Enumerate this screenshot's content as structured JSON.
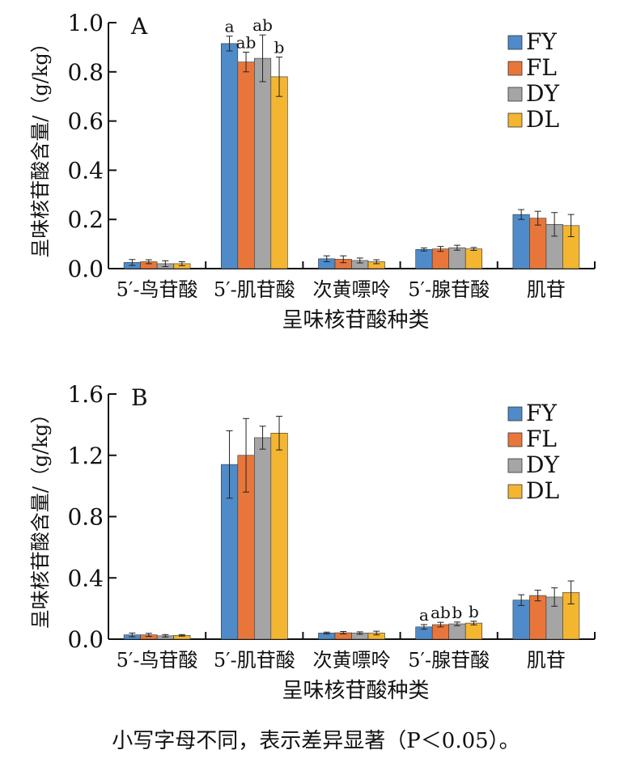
{
  "colors": {
    "FY": "#4f8bc9",
    "FL": "#e8763b",
    "DY": "#a5a5a5",
    "DL": "#f4b531",
    "axis": "#111111"
  },
  "chart_data": [
    {
      "type": "bar",
      "panel_label": "A",
      "categories": [
        "5′-鸟苷酸",
        "5′-肌苷酸",
        "次黄嘌呤",
        "5′-腺苷酸",
        "肌苷"
      ],
      "ylabel": "呈味核苷酸含量/（g/kg）",
      "xlabel": "呈味核苷酸种类",
      "ylim": [
        0,
        1.0
      ],
      "yticks": [
        "0.0",
        "0.2",
        "0.4",
        "0.6",
        "0.8",
        "1.0"
      ],
      "legend": "top-right",
      "series": [
        {
          "name": "FY",
          "values": [
            0.025,
            0.915,
            0.04,
            0.078,
            0.22
          ],
          "errors": [
            0.012,
            0.03,
            0.012,
            0.006,
            0.02
          ],
          "labels": [
            "",
            "a",
            "",
            "",
            ""
          ]
        },
        {
          "name": "FL",
          "values": [
            0.028,
            0.84,
            0.038,
            0.08,
            0.205
          ],
          "errors": [
            0.008,
            0.04,
            0.014,
            0.01,
            0.028
          ],
          "labels": [
            "",
            "ab",
            "",
            "",
            ""
          ]
        },
        {
          "name": "DY",
          "values": [
            0.02,
            0.855,
            0.033,
            0.085,
            0.18
          ],
          "errors": [
            0.012,
            0.095,
            0.01,
            0.01,
            0.048
          ],
          "labels": [
            "",
            "ab",
            "",
            "",
            ""
          ]
        },
        {
          "name": "DL",
          "values": [
            0.02,
            0.78,
            0.028,
            0.08,
            0.175
          ],
          "errors": [
            0.008,
            0.08,
            0.008,
            0.006,
            0.045
          ],
          "labels": [
            "",
            "b",
            "",
            "",
            ""
          ]
        }
      ]
    },
    {
      "type": "bar",
      "panel_label": "B",
      "categories": [
        "5′-鸟苷酸",
        "5′-肌苷酸",
        "次黄嘌呤",
        "5′-腺苷酸",
        "肌苷"
      ],
      "ylabel": "呈味核苷酸含量/（g/kg）",
      "xlabel": "呈味核苷酸种类",
      "ylim": [
        0,
        1.6
      ],
      "yticks": [
        "0.0",
        "0.4",
        "0.8",
        "1.2",
        "1.6"
      ],
      "legend": "top-right",
      "series": [
        {
          "name": "FY",
          "values": [
            0.028,
            1.14,
            0.04,
            0.08,
            0.255
          ],
          "errors": [
            0.012,
            0.22,
            0.006,
            0.015,
            0.035
          ],
          "labels": [
            "",
            "",
            "",
            "a",
            ""
          ]
        },
        {
          "name": "FL",
          "values": [
            0.028,
            1.2,
            0.042,
            0.095,
            0.285
          ],
          "errors": [
            0.01,
            0.24,
            0.008,
            0.015,
            0.035
          ],
          "labels": [
            "",
            "",
            "",
            "ab",
            ""
          ]
        },
        {
          "name": "DY",
          "values": [
            0.022,
            1.315,
            0.04,
            0.1,
            0.275
          ],
          "errors": [
            0.008,
            0.075,
            0.008,
            0.012,
            0.06
          ],
          "labels": [
            "",
            "",
            "",
            "b",
            ""
          ]
        },
        {
          "name": "DL",
          "values": [
            0.025,
            1.345,
            0.04,
            0.105,
            0.305
          ],
          "errors": [
            0.005,
            0.11,
            0.012,
            0.012,
            0.075
          ],
          "labels": [
            "",
            "",
            "",
            "b",
            ""
          ]
        }
      ]
    }
  ],
  "caption": "小写字母不同，表示差异显著（P＜0.05）。"
}
